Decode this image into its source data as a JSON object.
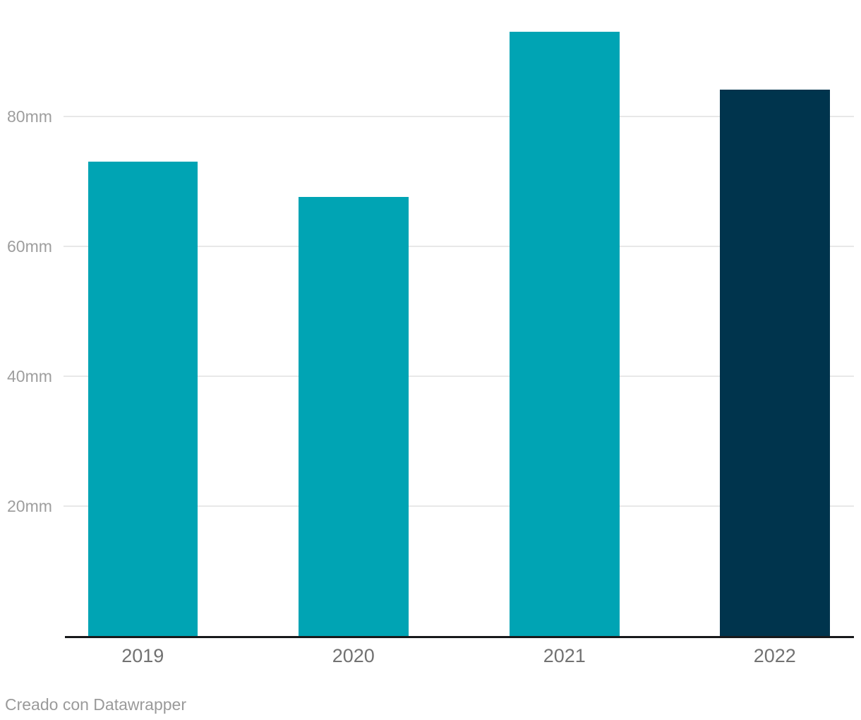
{
  "chart_data": {
    "type": "bar",
    "title": "",
    "xlabel": "",
    "ylabel": "",
    "unit": "mm",
    "categories": [
      "2019",
      "2020",
      "2021",
      "2022"
    ],
    "values": [
      73,
      67.6,
      93,
      84.1
    ],
    "bar_colors": [
      "#00a4b4",
      "#00a4b4",
      "#00a4b4",
      "#00344d"
    ],
    "y_ticks": [
      20,
      40,
      60,
      80
    ],
    "y_tick_labels": [
      "20mm",
      "40mm",
      "60mm",
      "80mm"
    ],
    "ylim": [
      0,
      98
    ],
    "grid": true,
    "legend": "none"
  },
  "colors": {
    "accent_teal": "#00a4b4",
    "accent_navy": "#00344d",
    "gridline": "#e8e8e8",
    "axis_line": "#18191b",
    "y_tick_label": "#9e9e9e",
    "x_tick_label": "#727272",
    "footer_text": "#9a9a9a",
    "background": "#ffffff"
  },
  "footer": {
    "credit": "Creado con Datawrapper"
  }
}
